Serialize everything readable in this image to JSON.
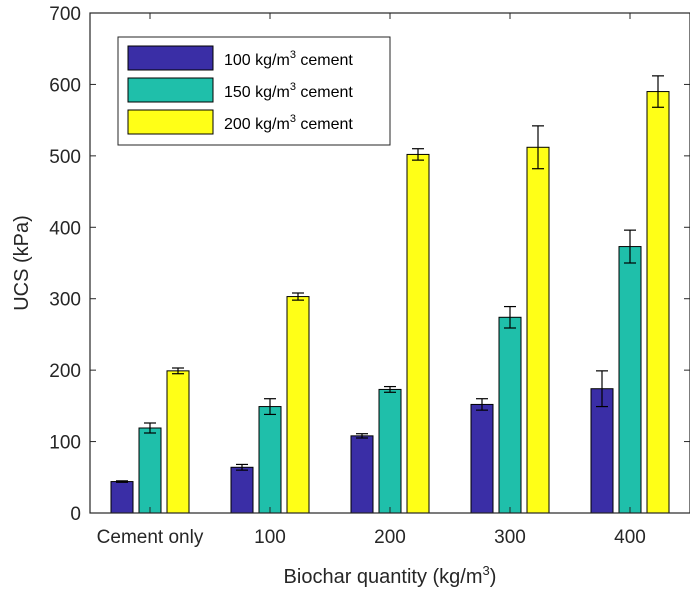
{
  "chart_data": {
    "type": "bar",
    "title": "",
    "xlabel": "Biochar quantity (kg/m",
    "xlabel_sup": "3",
    "xlabel_suffix": ")",
    "ylabel": "UCS (kPa)",
    "ylim": [
      0,
      700
    ],
    "yticks": [
      0,
      100,
      200,
      300,
      400,
      500,
      600,
      700
    ],
    "categories": [
      "Cement only",
      "100",
      "200",
      "300",
      "400"
    ],
    "grid": false,
    "legend_position": "top-left",
    "series": [
      {
        "name": "100 kg/m",
        "name_sup": "3",
        "name_suffix": " cement",
        "color": "#3a2ea6",
        "values": [
          44,
          64,
          108,
          152,
          174
        ],
        "errors": [
          1,
          4,
          3,
          8,
          25
        ]
      },
      {
        "name": "150 kg/m",
        "name_sup": "3",
        "name_suffix": " cement",
        "color": "#1fbfaa",
        "values": [
          119,
          149,
          173,
          274,
          373
        ],
        "errors": [
          7,
          11,
          4,
          15,
          23
        ]
      },
      {
        "name": "200 kg/m",
        "name_sup": "3",
        "name_suffix": " cement",
        "color": "#ffff17",
        "values": [
          199,
          303,
          502,
          512,
          590
        ],
        "errors": [
          4,
          5,
          8,
          30,
          22
        ]
      }
    ]
  }
}
